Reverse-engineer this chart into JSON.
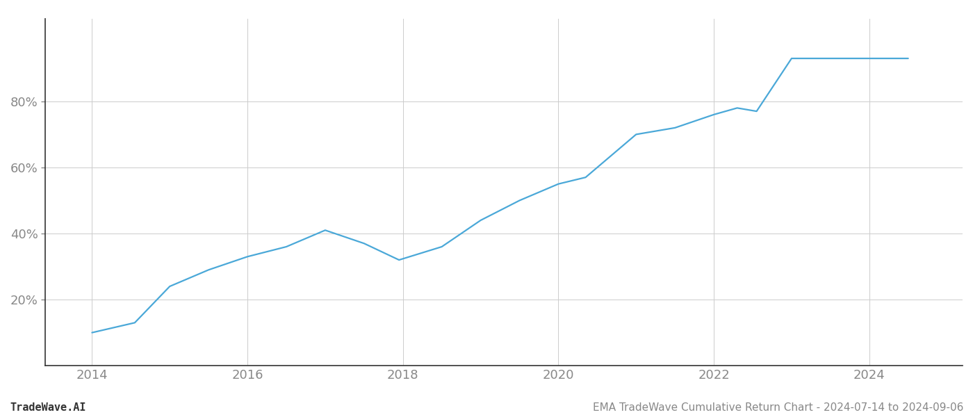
{
  "title": "",
  "footer_left": "TradeWave.AI",
  "footer_right": "EMA TradeWave Cumulative Return Chart - 2024-07-14 to 2024-09-06",
  "line_color": "#4aa8d8",
  "background_color": "#ffffff",
  "grid_color": "#cccccc",
  "x_years": [
    2014.0,
    2014.55,
    2015.0,
    2015.5,
    2016.0,
    2016.5,
    2017.0,
    2017.5,
    2017.95,
    2018.5,
    2019.0,
    2019.5,
    2020.0,
    2020.35,
    2021.0,
    2021.5,
    2022.0,
    2022.3,
    2022.55,
    2023.0,
    2023.5,
    2024.0,
    2024.5
  ],
  "y_values": [
    10,
    13,
    24,
    29,
    33,
    36,
    41,
    37,
    32,
    36,
    44,
    50,
    55,
    57,
    70,
    72,
    76,
    78,
    77,
    93,
    93,
    93,
    93
  ],
  "xlim": [
    2013.4,
    2025.2
  ],
  "ylim": [
    0,
    105
  ],
  "yticks": [
    20,
    40,
    60,
    80
  ],
  "xticks": [
    2014,
    2016,
    2018,
    2020,
    2022,
    2024
  ],
  "axis_color": "#333333",
  "tick_color": "#888888",
  "spine_color": "#333333",
  "line_width": 1.6,
  "footer_fontsize": 11,
  "tick_fontsize": 13
}
